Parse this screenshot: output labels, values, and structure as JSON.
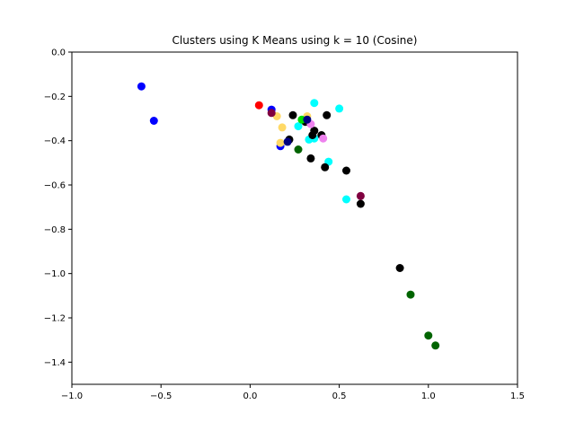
{
  "chart_data": {
    "type": "scatter",
    "title": "Clusters using K Means using k = 10 (Cosine)",
    "xlabel": "",
    "ylabel": "",
    "xlim": [
      -1.0,
      1.5
    ],
    "ylim": [
      -1.5,
      0.0
    ],
    "x_ticks": [
      "−1.0",
      "−0.5",
      "0.0",
      "0.5",
      "1.0",
      "1.5"
    ],
    "x_tick_values": [
      -1.0,
      -0.5,
      0.0,
      0.5,
      1.0,
      1.5
    ],
    "y_ticks": [
      "0.0",
      "−0.2",
      "−0.4",
      "−0.6",
      "−0.8",
      "−1.0",
      "−1.2",
      "−1.4"
    ],
    "y_tick_values": [
      0.0,
      -0.2,
      -0.4,
      -0.6,
      -0.8,
      -1.0,
      -1.2,
      -1.4
    ],
    "grid": false,
    "legend": "none",
    "clusters": [
      {
        "color": "#0000ff",
        "points": [
          [
            -0.61,
            -0.155
          ],
          [
            -0.54,
            -0.31
          ],
          [
            0.12,
            -0.26
          ],
          [
            0.17,
            -0.425
          ]
        ]
      },
      {
        "color": "#ff0000",
        "points": [
          [
            0.05,
            -0.24
          ]
        ]
      },
      {
        "color": "#00ffff",
        "points": [
          [
            0.36,
            -0.23
          ],
          [
            0.5,
            -0.255
          ],
          [
            0.27,
            -0.335
          ],
          [
            0.33,
            -0.395
          ],
          [
            0.44,
            -0.495
          ],
          [
            0.54,
            -0.665
          ],
          [
            0.36,
            -0.39
          ]
        ]
      },
      {
        "color": "#000000",
        "points": [
          [
            0.24,
            -0.285
          ],
          [
            0.43,
            -0.285
          ],
          [
            0.31,
            -0.315
          ],
          [
            0.35,
            -0.375
          ],
          [
            0.36,
            -0.355
          ],
          [
            0.4,
            -0.375
          ],
          [
            0.22,
            -0.395
          ],
          [
            0.34,
            -0.48
          ],
          [
            0.42,
            -0.52
          ],
          [
            0.54,
            -0.535
          ],
          [
            0.62,
            -0.685
          ],
          [
            0.84,
            -0.975
          ]
        ]
      },
      {
        "color": "#ffd966",
        "points": [
          [
            0.15,
            -0.29
          ],
          [
            0.18,
            -0.34
          ],
          [
            0.17,
            -0.41
          ],
          [
            0.32,
            -0.29
          ]
        ]
      },
      {
        "color": "#00dd00",
        "points": [
          [
            0.29,
            -0.305
          ]
        ]
      },
      {
        "color": "#ee82ee",
        "points": [
          [
            0.34,
            -0.325
          ],
          [
            0.41,
            -0.39
          ]
        ]
      },
      {
        "color": "#006400",
        "points": [
          [
            0.27,
            -0.44
          ],
          [
            0.9,
            -1.095
          ],
          [
            1.0,
            -1.28
          ],
          [
            1.04,
            -1.325
          ]
        ]
      },
      {
        "color": "#000080",
        "points": [
          [
            0.21,
            -0.405
          ],
          [
            0.32,
            -0.305
          ]
        ]
      },
      {
        "color": "#800040",
        "points": [
          [
            0.62,
            -0.65
          ],
          [
            0.12,
            -0.275
          ]
        ]
      }
    ]
  }
}
